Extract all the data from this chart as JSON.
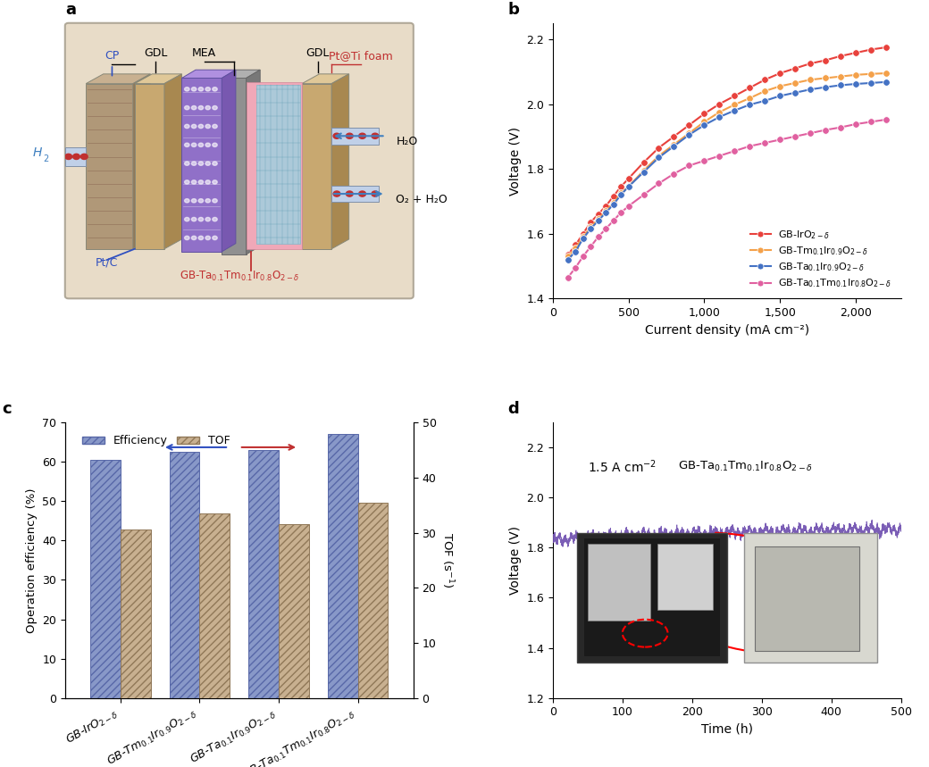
{
  "panel_b": {
    "xlabel": "Current density (mA cm⁻²)",
    "ylabel": "Voltage (V)",
    "xlim": [
      0,
      2300
    ],
    "ylim": [
      1.4,
      2.25
    ],
    "series": {
      "red": {
        "color": "#e8413c",
        "x": [
          100,
          150,
          200,
          250,
          300,
          350,
          400,
          450,
          500,
          600,
          700,
          800,
          900,
          1000,
          1100,
          1200,
          1300,
          1400,
          1500,
          1600,
          1700,
          1800,
          1900,
          2000,
          2100,
          2200
        ],
        "y": [
          1.535,
          1.565,
          1.6,
          1.635,
          1.66,
          1.685,
          1.715,
          1.745,
          1.77,
          1.82,
          1.865,
          1.9,
          1.935,
          1.97,
          2.0,
          2.025,
          2.05,
          2.075,
          2.095,
          2.11,
          2.125,
          2.135,
          2.148,
          2.158,
          2.168,
          2.175
        ]
      },
      "orange": {
        "color": "#f4a14a",
        "x": [
          100,
          150,
          200,
          250,
          300,
          350,
          400,
          450,
          500,
          600,
          700,
          800,
          900,
          1000,
          1100,
          1200,
          1300,
          1400,
          1500,
          1600,
          1700,
          1800,
          1900,
          2000,
          2100,
          2200
        ],
        "y": [
          1.53,
          1.555,
          1.59,
          1.62,
          1.645,
          1.67,
          1.695,
          1.725,
          1.745,
          1.795,
          1.84,
          1.875,
          1.91,
          1.945,
          1.975,
          1.998,
          2.018,
          2.04,
          2.055,
          2.065,
          2.075,
          2.08,
          2.085,
          2.09,
          2.093,
          2.095
        ]
      },
      "blue": {
        "color": "#4472c4",
        "x": [
          100,
          150,
          200,
          250,
          300,
          350,
          400,
          450,
          500,
          600,
          700,
          800,
          900,
          1000,
          1100,
          1200,
          1300,
          1400,
          1500,
          1600,
          1700,
          1800,
          1900,
          2000,
          2100,
          2200
        ],
        "y": [
          1.52,
          1.545,
          1.585,
          1.615,
          1.64,
          1.665,
          1.69,
          1.72,
          1.745,
          1.79,
          1.835,
          1.87,
          1.905,
          1.935,
          1.96,
          1.98,
          1.998,
          2.01,
          2.025,
          2.035,
          2.045,
          2.052,
          2.058,
          2.062,
          2.065,
          2.068
        ]
      },
      "magenta": {
        "color": "#e060a0",
        "x": [
          100,
          150,
          200,
          250,
          300,
          350,
          400,
          450,
          500,
          600,
          700,
          800,
          900,
          1000,
          1100,
          1200,
          1300,
          1400,
          1500,
          1600,
          1700,
          1800,
          1900,
          2000,
          2100,
          2200
        ],
        "y": [
          1.465,
          1.495,
          1.53,
          1.56,
          1.59,
          1.615,
          1.64,
          1.665,
          1.685,
          1.72,
          1.755,
          1.785,
          1.81,
          1.825,
          1.84,
          1.855,
          1.87,
          1.88,
          1.89,
          1.9,
          1.91,
          1.92,
          1.928,
          1.938,
          1.945,
          1.952
        ]
      }
    },
    "legend_labels": [
      "GB-IrO$_{2-\\delta}$",
      "GB-Tm$_{0.1}$Ir$_{0.9}$O$_{2-\\delta}$",
      "GB-Ta$_{0.1}$Ir$_{0.9}$O$_{2-\\delta}$",
      "GB-Ta$_{0.1}$Tm$_{0.1}$Ir$_{0.8}$O$_{2-\\delta}$"
    ],
    "legend_colors": [
      "#e8413c",
      "#f4a14a",
      "#4472c4",
      "#e060a0"
    ]
  },
  "panel_c": {
    "ylabel_left": "Operation efficiency (%)",
    "ylabel_right": "TOF (s$^{-1}$)",
    "ylim_left": [
      0,
      70
    ],
    "ylim_right": [
      0,
      50
    ],
    "efficiency": [
      60.5,
      62.5,
      63.0,
      67.0
    ],
    "tof": [
      30.5,
      33.5,
      31.5,
      35.5
    ],
    "bar_color_blue": "#8898c8",
    "bar_color_tan": "#c8b090",
    "efficiency_yticks": [
      0,
      10,
      20,
      30,
      40,
      50,
      60,
      70
    ],
    "tof_yticks": [
      0,
      10,
      20,
      30,
      40,
      50
    ]
  },
  "panel_d": {
    "xlabel": "Time (h)",
    "ylabel": "Voltage (V)",
    "xlim": [
      0,
      500
    ],
    "ylim": [
      1.2,
      2.3
    ],
    "annotation1": "1.5 A cm$^{-2}$",
    "annotation2": "GB-Ta$_{0.1}$Tm$_{0.1}$Ir$_{0.8}$O$_{2-\\delta}$",
    "line_color": "#7050b0",
    "baseline_voltage": 1.825,
    "final_voltage": 1.875,
    "yticks": [
      1.2,
      1.4,
      1.6,
      1.8,
      2.0,
      2.2
    ],
    "xticks": [
      0,
      100,
      200,
      300,
      400,
      500
    ]
  },
  "panel_a_bg": "#e8dcc8",
  "panel_a_border": "#b0a898"
}
